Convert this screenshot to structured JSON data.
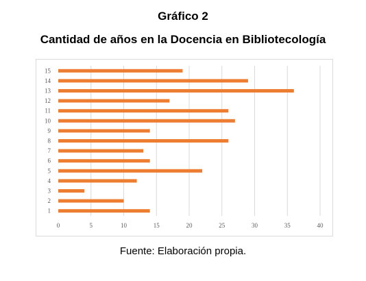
{
  "header": {
    "figure_label": "Gráfico 2",
    "title": "Cantidad de años en la Docencia en Bibliotecología"
  },
  "footer": {
    "source": "Fuente: Elaboración propia."
  },
  "colors": {
    "bar": "#ed7d31",
    "grid": "#d9d9d9",
    "tick_text": "#595959"
  },
  "chart_data": {
    "type": "bar",
    "orientation": "horizontal",
    "categories": [
      "1",
      "2",
      "3",
      "4",
      "5",
      "6",
      "7",
      "8",
      "9",
      "10",
      "11",
      "12",
      "13",
      "14",
      "15"
    ],
    "values": [
      14,
      10,
      4,
      12,
      22,
      14,
      13,
      26,
      14,
      27,
      26,
      17,
      36,
      29,
      19
    ],
    "title": "Cantidad de años en la Docencia en Bibliotecología",
    "xlabel": "",
    "ylabel": "",
    "xlim": [
      0,
      40
    ],
    "xticks": [
      "0",
      "5",
      "10",
      "15",
      "20",
      "25",
      "30",
      "35",
      "40"
    ],
    "grid": "vertical",
    "legend": "none"
  }
}
